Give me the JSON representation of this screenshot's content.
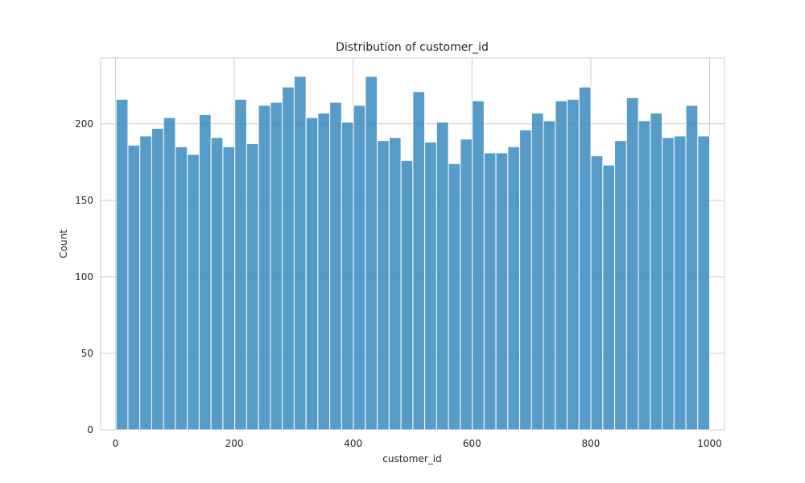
{
  "chart_data": {
    "type": "bar",
    "title": "Distribution of customer_id",
    "xlabel": "customer_id",
    "ylabel": "Count",
    "xlim": [
      -25,
      1025
    ],
    "ylim": [
      0,
      243
    ],
    "xticks": [
      0,
      200,
      400,
      600,
      800,
      1000
    ],
    "yticks": [
      0,
      50,
      100,
      150,
      200
    ],
    "grid": true,
    "bar_color": "#3a8ac0",
    "bins": {
      "start": 1,
      "end": 1000,
      "count": 50,
      "values": [
        216,
        186,
        192,
        197,
        204,
        185,
        180,
        206,
        191,
        185,
        216,
        187,
        212,
        214,
        224,
        231,
        204,
        207,
        214,
        201,
        212,
        231,
        189,
        191,
        176,
        221,
        188,
        201,
        174,
        190,
        215,
        181,
        181,
        185,
        196,
        207,
        202,
        215,
        216,
        224,
        179,
        173,
        189,
        217,
        202,
        207,
        191,
        192,
        212,
        192
      ]
    }
  }
}
